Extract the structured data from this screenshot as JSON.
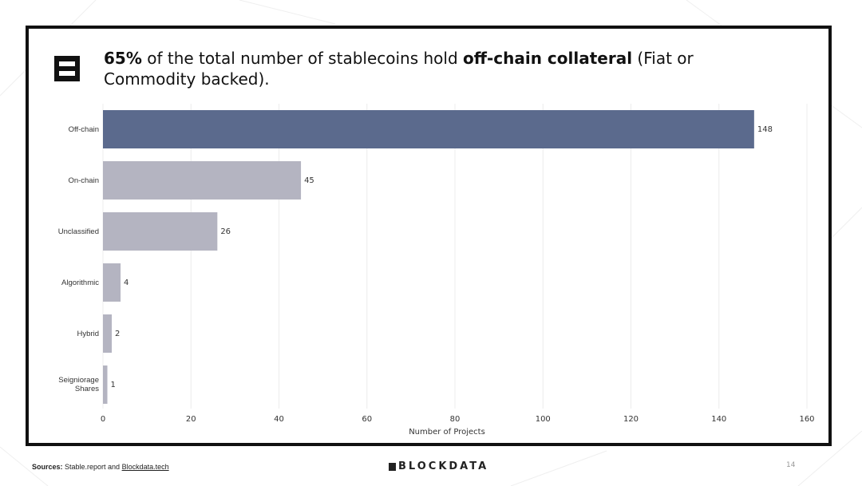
{
  "chart_data": {
    "type": "bar",
    "orientation": "horizontal",
    "title_parts": [
      "65%",
      " of the total number of stablecoins hold ",
      "off-chain collateral",
      " (Fiat or Commodity backed)."
    ],
    "title_bold": [
      true,
      false,
      true,
      false
    ],
    "categories": [
      "Off-chain",
      "On-chain",
      "Unclassified",
      "Algorithmic",
      "Hybrid",
      "Seigniorage Shares"
    ],
    "values": [
      148,
      45,
      26,
      4,
      2,
      1
    ],
    "colors": [
      "#5b6a8d",
      "#b4b4c1",
      "#b4b4c1",
      "#b4b4c1",
      "#b4b4c1",
      "#b4b4c1"
    ],
    "xlabel": "Number of Projects",
    "xlim": [
      0,
      160
    ],
    "xticks": [
      0,
      20,
      40,
      60,
      80,
      100,
      120,
      140,
      160
    ],
    "grid": true
  },
  "footer": {
    "sources_label": "Sources:",
    "sources_text": " Stable.report and ",
    "sources_link": "Blockdata.tech",
    "brand": "BLOCKDATA",
    "page_number": "14"
  }
}
